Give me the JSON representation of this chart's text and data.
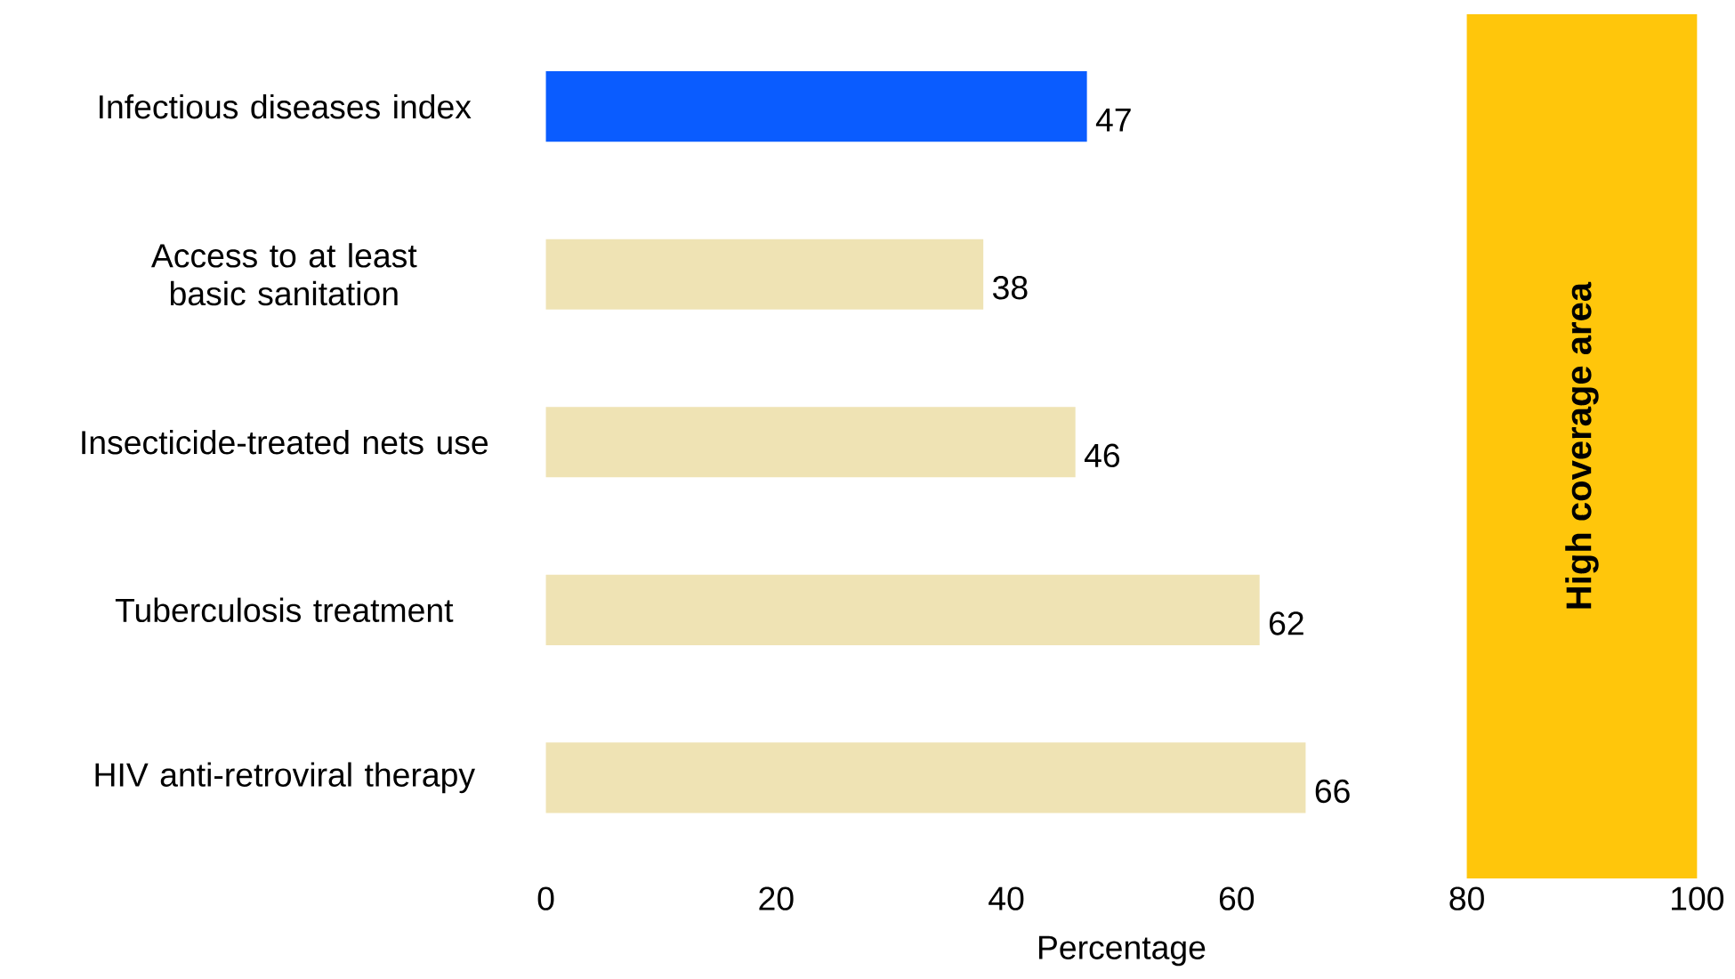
{
  "chart_data": {
    "type": "bar",
    "orientation": "horizontal",
    "xlabel": "Percentage",
    "categories": [
      "Infectious diseases index",
      "Access to at least basic sanitation",
      "Insecticide-treated nets use",
      "Tuberculosis treatment",
      "HIV anti-retroviral therapy"
    ],
    "values": [
      47,
      38,
      46,
      62,
      66
    ],
    "colors": [
      "#0a5cff",
      "#efe3b4",
      "#efe3b4",
      "#efe3b4",
      "#efe3b4"
    ],
    "xlim": [
      0,
      100
    ],
    "xticks": [
      0,
      20,
      40,
      60,
      80,
      100
    ],
    "bands": [
      {
        "axis": "x",
        "from": 80,
        "to": 100,
        "label": "High coverage area",
        "color": "#ffc60b"
      }
    ],
    "data_labels": true
  }
}
